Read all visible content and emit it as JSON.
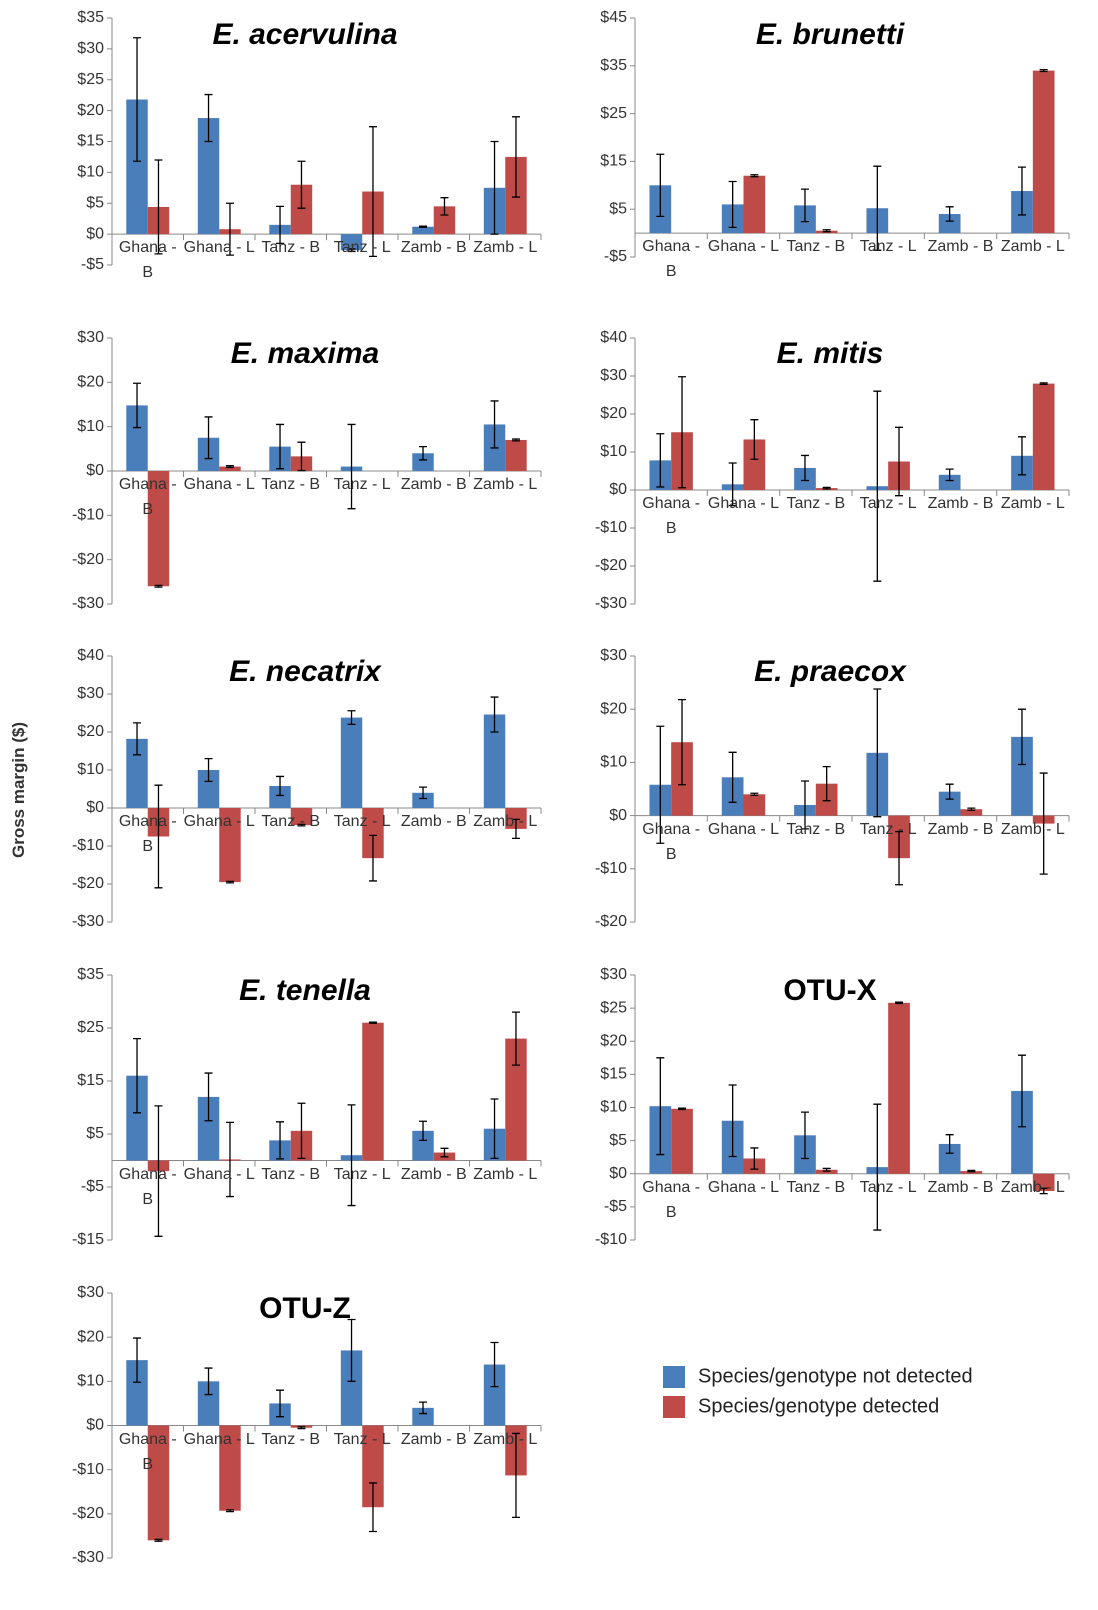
{
  "y_label": "Gross margin ($)",
  "legend": [
    {
      "name": "Species/genotype not detected",
      "color": "#4a7ebb"
    },
    {
      "name": "Species/genotype detected",
      "color": "#be4b48"
    }
  ],
  "chart_data": [
    {
      "type": "bar",
      "title": "E. acervulina",
      "title_italic": true,
      "categories": [
        "Ghana - B",
        "Ghana - L",
        "Tanz - B",
        "Tanz - L",
        "Zamb - B",
        "Zamb - L"
      ],
      "series": [
        {
          "values": [
            21.8,
            18.8,
            1.5,
            -2.6,
            1.2,
            7.5
          ],
          "errors": [
            10,
            3.8,
            3,
            0.2,
            0.1,
            7.5
          ]
        },
        {
          "values": [
            4.4,
            0.8,
            8,
            6.9,
            4.5,
            12.5
          ],
          "errors": [
            7.6,
            4.2,
            3.8,
            10.5,
            1.4,
            6.5
          ]
        }
      ],
      "ylim": [
        -5,
        35
      ],
      "yticks": [
        {
          "value": -5,
          "label": "-$5"
        },
        {
          "value": 0,
          "label": "$0"
        },
        {
          "value": 5,
          "label": "$5"
        },
        {
          "value": 10,
          "label": "$10"
        },
        {
          "value": 15,
          "label": "$15"
        },
        {
          "value": 20,
          "label": "$20"
        },
        {
          "value": 25,
          "label": "$25"
        },
        {
          "value": 30,
          "label": "$30"
        },
        {
          "value": 35,
          "label": "$35"
        }
      ]
    },
    {
      "type": "bar",
      "title": "E. brunetti",
      "title_italic": true,
      "categories": [
        "Ghana - B",
        "Ghana - L",
        "Tanz - B",
        "Tanz - L",
        "Zamb - B",
        "Zamb - L"
      ],
      "series": [
        {
          "values": [
            10,
            6,
            5.8,
            5.2,
            4,
            8.8
          ],
          "errors": [
            6.5,
            4.8,
            3.4,
            8.8,
            1.5,
            5
          ]
        },
        {
          "values": [
            0,
            12,
            0.5,
            0,
            0,
            34
          ],
          "errors": [
            0,
            0.2,
            0.2,
            0,
            0,
            0.2
          ]
        }
      ],
      "ylim": [
        -5,
        45
      ],
      "yticks": [
        {
          "value": -5,
          "label": "-$5"
        },
        {
          "value": 5,
          "label": "$5"
        },
        {
          "value": 15,
          "label": "$15"
        },
        {
          "value": 25,
          "label": "$25"
        },
        {
          "value": 35,
          "label": "$35"
        },
        {
          "value": 45,
          "label": "$45"
        }
      ]
    },
    {
      "type": "bar",
      "title": "E. maxima",
      "title_italic": true,
      "categories": [
        "Ghana - B",
        "Ghana - L",
        "Tanz - B",
        "Tanz - L",
        "Zamb - B",
        "Zamb - L"
      ],
      "series": [
        {
          "values": [
            14.8,
            7.5,
            5.5,
            1,
            4,
            10.5
          ],
          "errors": [
            5,
            4.7,
            5,
            9.5,
            1.5,
            5.3
          ]
        },
        {
          "values": [
            -26,
            1,
            3.3,
            0,
            0,
            7
          ],
          "errors": [
            0.2,
            0.2,
            3.2,
            0,
            0,
            0.2
          ]
        }
      ],
      "ylim": [
        -30,
        30
      ],
      "yticks": [
        {
          "value": -30,
          "label": "-$30"
        },
        {
          "value": -20,
          "label": "-$20"
        },
        {
          "value": -10,
          "label": "-$10"
        },
        {
          "value": 0,
          "label": "$0"
        },
        {
          "value": 10,
          "label": "$10"
        },
        {
          "value": 20,
          "label": "$20"
        },
        {
          "value": 30,
          "label": "$30"
        }
      ]
    },
    {
      "type": "bar",
      "title": "E. mitis",
      "title_italic": true,
      "categories": [
        "Ghana - B",
        "Ghana - L",
        "Tanz - B",
        "Tanz - L",
        "Zamb - B",
        "Zamb - L"
      ],
      "series": [
        {
          "values": [
            7.8,
            1.5,
            5.8,
            1,
            4,
            9
          ],
          "errors": [
            7,
            5.6,
            3.3,
            25,
            1.5,
            5
          ]
        },
        {
          "values": [
            15.2,
            13.3,
            0.5,
            7.5,
            0,
            28
          ],
          "errors": [
            14.6,
            5.2,
            0.2,
            9,
            0,
            0.2
          ]
        }
      ],
      "ylim": [
        -30,
        40
      ],
      "yticks": [
        {
          "value": -30,
          "label": "-$30"
        },
        {
          "value": -20,
          "label": "-$20"
        },
        {
          "value": -10,
          "label": "-$10"
        },
        {
          "value": 0,
          "label": "$0"
        },
        {
          "value": 10,
          "label": "$10"
        },
        {
          "value": 20,
          "label": "$20"
        },
        {
          "value": 30,
          "label": "$30"
        },
        {
          "value": 40,
          "label": "$40"
        }
      ]
    },
    {
      "type": "bar",
      "title": "E. necatrix",
      "title_italic": true,
      "categories": [
        "Ghana - B",
        "Ghana - L",
        "Tanz - B",
        "Tanz - L",
        "Zamb - B",
        "Zamb - L"
      ],
      "series": [
        {
          "values": [
            18.2,
            10,
            5.8,
            23.8,
            4,
            24.6
          ],
          "errors": [
            4.2,
            3,
            2.5,
            1.8,
            1.5,
            4.6
          ]
        },
        {
          "values": [
            -7.5,
            -19.5,
            -4.5,
            -13.2,
            0,
            -5.5
          ],
          "errors": [
            13.5,
            0.2,
            0.2,
            6,
            0,
            2.5
          ]
        }
      ],
      "ylim": [
        -30,
        40
      ],
      "yticks": [
        {
          "value": -30,
          "label": "-$30"
        },
        {
          "value": -20,
          "label": "-$20"
        },
        {
          "value": -10,
          "label": "-$10"
        },
        {
          "value": 0,
          "label": "$0"
        },
        {
          "value": 10,
          "label": "$10"
        },
        {
          "value": 20,
          "label": "$20"
        },
        {
          "value": 30,
          "label": "$30"
        },
        {
          "value": 40,
          "label": "$40"
        }
      ]
    },
    {
      "type": "bar",
      "title": "E. praecox",
      "title_italic": true,
      "categories": [
        "Ghana - B",
        "Ghana - L",
        "Tanz - B",
        "Tanz - L",
        "Zamb - B",
        "Zamb - L"
      ],
      "series": [
        {
          "values": [
            5.8,
            7.2,
            2,
            11.8,
            4.5,
            14.8
          ],
          "errors": [
            11,
            4.7,
            4.5,
            12,
            1.4,
            5.2
          ]
        },
        {
          "values": [
            13.8,
            4,
            6,
            -8,
            1.2,
            -1.5
          ],
          "errors": [
            8,
            0.2,
            3.2,
            5,
            0.2,
            9.5
          ]
        }
      ],
      "ylim": [
        -20,
        30
      ],
      "yticks": [
        {
          "value": -20,
          "label": "-$20"
        },
        {
          "value": -10,
          "label": "-$10"
        },
        {
          "value": 0,
          "label": "$0"
        },
        {
          "value": 10,
          "label": "$10"
        },
        {
          "value": 20,
          "label": "$20"
        },
        {
          "value": 30,
          "label": "$30"
        }
      ]
    },
    {
      "type": "bar",
      "title": "E. tenella",
      "title_italic": true,
      "categories": [
        "Ghana - B",
        "Ghana - L",
        "Tanz - B",
        "Tanz - L",
        "Zamb - B",
        "Zamb - L"
      ],
      "series": [
        {
          "values": [
            16,
            12,
            3.8,
            1,
            5.6,
            6
          ],
          "errors": [
            7,
            4.5,
            3.5,
            9.5,
            1.8,
            5.6
          ]
        },
        {
          "values": [
            -2,
            0.2,
            5.6,
            26,
            1.5,
            23
          ],
          "errors": [
            12.3,
            7,
            5.2,
            0.1,
            0.8,
            5
          ]
        }
      ],
      "ylim": [
        -15,
        35
      ],
      "yticks": [
        {
          "value": -15,
          "label": "-$15"
        },
        {
          "value": -5,
          "label": "-$5"
        },
        {
          "value": 5,
          "label": "$5"
        },
        {
          "value": 15,
          "label": "$15"
        },
        {
          "value": 25,
          "label": "$25"
        },
        {
          "value": 35,
          "label": "$35"
        }
      ]
    },
    {
      "type": "bar",
      "title": "OTU-X",
      "title_italic": false,
      "categories": [
        "Ghana - B",
        "Ghana - L",
        "Tanz - B",
        "Tanz - L",
        "Zamb - B",
        "Zamb - L"
      ],
      "series": [
        {
          "values": [
            10.2,
            8,
            5.8,
            1,
            4.5,
            12.5
          ],
          "errors": [
            7.3,
            5.4,
            3.5,
            9.5,
            1.4,
            5.4
          ]
        },
        {
          "values": [
            9.8,
            2.3,
            0.6,
            25.8,
            0.4,
            -2.6
          ],
          "errors": [
            0.1,
            1.6,
            0.2,
            0.1,
            0.1,
            0.4
          ]
        }
      ],
      "ylim": [
        -10,
        30
      ],
      "yticks": [
        {
          "value": -10,
          "label": "-$10"
        },
        {
          "value": -5,
          "label": "-$5"
        },
        {
          "value": 0,
          "label": "$0"
        },
        {
          "value": 5,
          "label": "$5"
        },
        {
          "value": 10,
          "label": "$10"
        },
        {
          "value": 15,
          "label": "$15"
        },
        {
          "value": 20,
          "label": "$20"
        },
        {
          "value": 25,
          "label": "$25"
        },
        {
          "value": 30,
          "label": "$30"
        }
      ]
    },
    {
      "type": "bar",
      "title": "OTU-Z",
      "title_italic": false,
      "categories": [
        "Ghana - B",
        "Ghana - L",
        "Tanz - B",
        "Tanz - L",
        "Zamb - B",
        "Zamb - L"
      ],
      "series": [
        {
          "values": [
            14.8,
            10,
            5,
            17,
            4,
            13.8
          ],
          "errors": [
            5,
            3,
            3,
            7,
            1.3,
            5
          ]
        },
        {
          "values": [
            -26,
            -19.3,
            -0.5,
            -18.5,
            0,
            -11.3
          ],
          "errors": [
            0.2,
            0.2,
            0.2,
            5.5,
            0,
            9.5
          ]
        }
      ],
      "ylim": [
        -30,
        30
      ],
      "yticks": [
        {
          "value": -30,
          "label": "-$30"
        },
        {
          "value": -20,
          "label": "-$20"
        },
        {
          "value": -10,
          "label": "-$10"
        },
        {
          "value": 0,
          "label": "$0"
        },
        {
          "value": 10,
          "label": "$10"
        },
        {
          "value": 20,
          "label": "$20"
        },
        {
          "value": 30,
          "label": "$30"
        }
      ]
    }
  ]
}
